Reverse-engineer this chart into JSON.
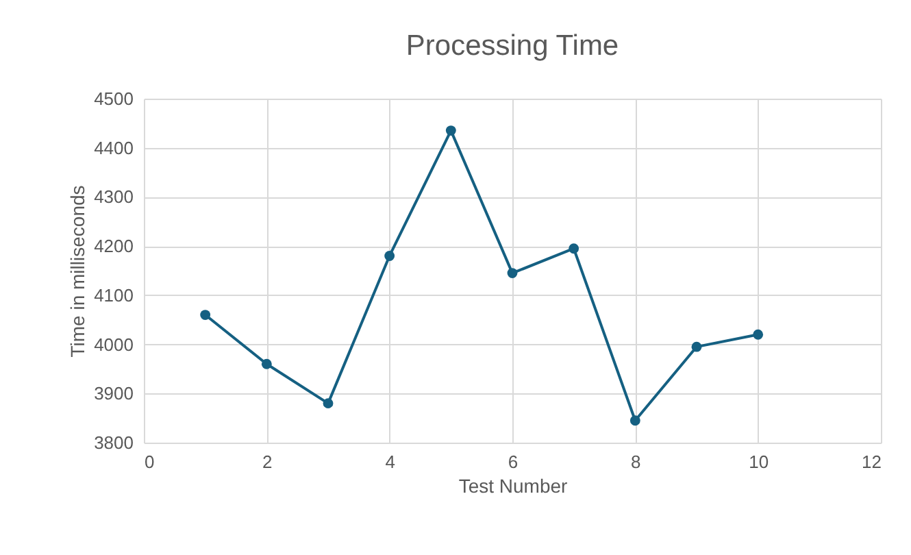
{
  "chart_data": {
    "type": "line",
    "title": "Processing Time",
    "xlabel": "Test Number",
    "ylabel": "Time in milliseconds",
    "x": [
      1,
      2,
      3,
      4,
      5,
      6,
      7,
      8,
      9,
      10
    ],
    "series": [
      {
        "color": "#156082",
        "values": [
          4060,
          3960,
          3880,
          4180,
          4435,
          4145,
          4195,
          3845,
          3995,
          4020
        ]
      }
    ],
    "xlim": [
      0,
      12
    ],
    "xticks": [
      0,
      2,
      4,
      6,
      8,
      10,
      12
    ],
    "ylim": [
      3800,
      4500
    ],
    "yticks": [
      3800,
      3900,
      4000,
      4100,
      4200,
      4300,
      4400,
      4500
    ],
    "grid": true,
    "marker": "circle",
    "line_style": "solid"
  }
}
